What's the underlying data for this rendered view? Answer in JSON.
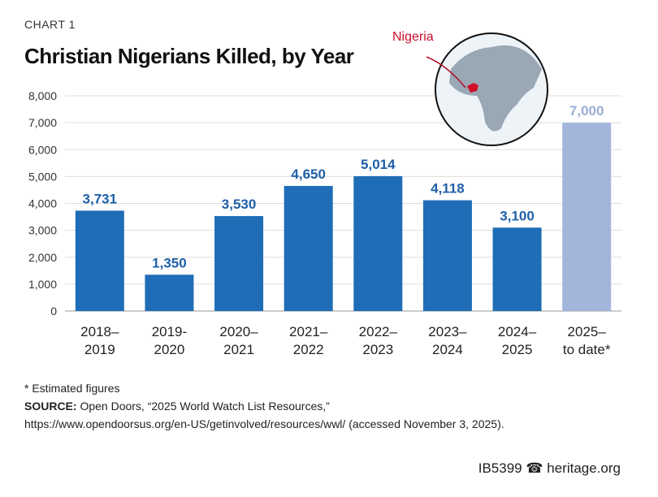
{
  "kicker": "CHART 1",
  "chart_data": {
    "type": "bar",
    "title": "Christian Nigerians Killed, by Year",
    "categories": [
      [
        "2018–",
        "2019"
      ],
      [
        "2019-",
        "2020"
      ],
      [
        "2020–",
        "2021"
      ],
      [
        "2021–",
        "2022"
      ],
      [
        "2022–",
        "2023"
      ],
      [
        "2023–",
        "2024"
      ],
      [
        "2024–",
        "2025"
      ],
      [
        "2025–",
        "to date*"
      ]
    ],
    "values": [
      3731,
      1350,
      3530,
      4650,
      5014,
      4118,
      3100,
      7000
    ],
    "value_labels": [
      "3,731",
      "1,350",
      "3,530",
      "4,650",
      "5,014",
      "4,118",
      "3,100",
      "7,000"
    ],
    "estimated": [
      false,
      false,
      false,
      false,
      false,
      false,
      false,
      true
    ],
    "yticks": [
      "0",
      "1,000",
      "2,000",
      "3,000",
      "4,000",
      "5,000",
      "6,000",
      "7,000",
      "8,000"
    ],
    "ylim": [
      0,
      8000
    ],
    "grid": true,
    "colors": {
      "bar": "#1f6db6",
      "estimated_bar": "#a3b5db",
      "label": "#1e5fa8",
      "estimated_label": "#9aaed6"
    }
  },
  "map": {
    "label": "Nigeria",
    "label_color": "#c8102e"
  },
  "footnote": "* Estimated figures",
  "source_label": "SOURCE:",
  "source_text": " Open Doors, “2025 World Watch List Resources,”",
  "source_url": "https://www.opendoorsus.org/en-US/getinvolved/resources/wwl/ (accessed November 3, 2025).",
  "credit": {
    "code": "IB5399",
    "site": "heritage.org"
  }
}
